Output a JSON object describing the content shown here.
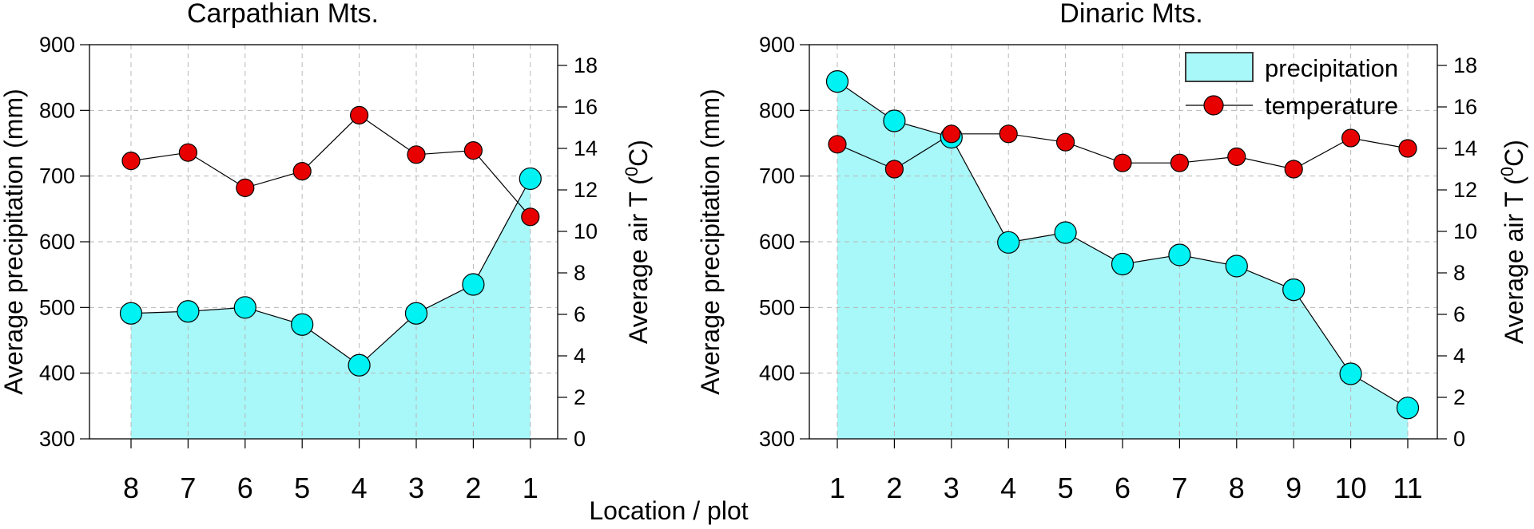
{
  "figure": {
    "xlabel": "Location / plot",
    "legend": {
      "position": "top-right",
      "items": [
        "precipitation",
        "temperature"
      ]
    }
  },
  "colors": {
    "precipitation_fill": "#a8f7f9",
    "precipitation_marker": "#00f2f2",
    "temperature_marker": "#e80000",
    "line": "#000000",
    "grid": "#b8b8b8"
  },
  "chart_data": [
    {
      "type": "area",
      "title": "Carpathian Mts.",
      "categories": [
        "8",
        "7",
        "6",
        "5",
        "4",
        "3",
        "2",
        "1"
      ],
      "ylabel": "Average precipitation (mm)",
      "ylim": [
        300,
        900
      ],
      "yticks": [
        "300",
        "400",
        "500",
        "600",
        "700",
        "800",
        "900"
      ],
      "y2label": "Average air T (⁰C)",
      "y2lim": [
        0,
        19
      ],
      "y2ticks": [
        "0",
        "2",
        "4",
        "6",
        "8",
        "10",
        "12",
        "14",
        "16",
        "18"
      ],
      "grid": true,
      "series": [
        {
          "name": "precipitation",
          "axis": "left",
          "values": [
            491,
            494,
            500,
            474,
            412,
            491,
            535,
            696
          ]
        },
        {
          "name": "temperature",
          "axis": "right",
          "values": [
            13.4,
            13.8,
            12.1,
            12.9,
            15.6,
            13.7,
            13.9,
            10.7
          ]
        }
      ]
    },
    {
      "type": "area",
      "title": "Dinaric Mts.",
      "categories": [
        "1",
        "2",
        "3",
        "4",
        "5",
        "6",
        "7",
        "8",
        "9",
        "10",
        "11"
      ],
      "ylabel": "Average precipitation (mm)",
      "ylim": [
        300,
        900
      ],
      "yticks": [
        "300",
        "400",
        "500",
        "600",
        "700",
        "800",
        "900"
      ],
      "y2label": "Average air T (⁰C)",
      "y2lim": [
        0,
        19
      ],
      "y2ticks": [
        "0",
        "2",
        "4",
        "6",
        "8",
        "10",
        "12",
        "14",
        "16",
        "18"
      ],
      "grid": true,
      "series": [
        {
          "name": "precipitation",
          "axis": "left",
          "values": [
            844,
            784,
            759,
            599,
            614,
            566,
            580,
            563,
            527,
            399,
            347
          ]
        },
        {
          "name": "temperature",
          "axis": "right",
          "values": [
            14.2,
            13.0,
            14.7,
            14.7,
            14.3,
            13.3,
            13.3,
            13.6,
            13.0,
            14.5,
            14.0
          ]
        }
      ]
    }
  ]
}
